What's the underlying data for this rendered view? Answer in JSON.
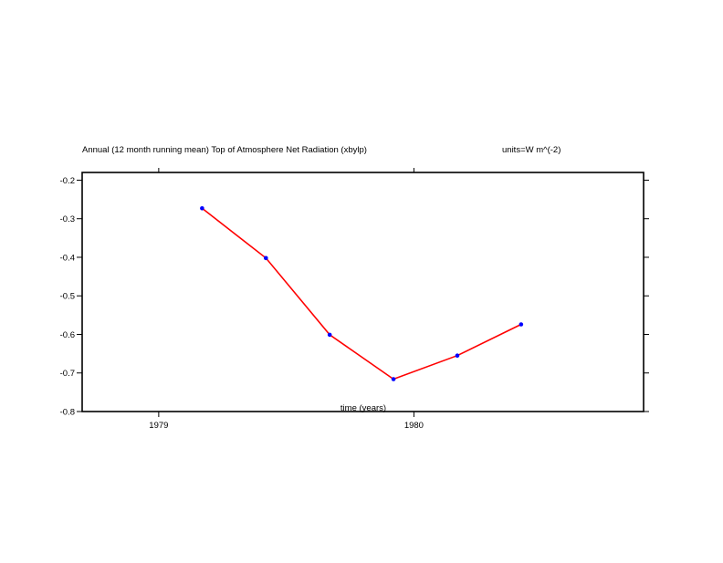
{
  "chart_data": {
    "type": "line",
    "title": "Annual (12 month running mean) Top of Atmosphere Net Radiation (xbylp)",
    "units": "units=W m^(-2)",
    "xlabel": "time (years)",
    "ylabel": "",
    "xlim": [
      1978.7,
      1980.9
    ],
    "ylim": [
      -0.8,
      -0.18
    ],
    "x_ticks": [
      1979,
      1980
    ],
    "x_tick_labels": [
      "1979",
      "1980"
    ],
    "y_ticks": [
      -0.2,
      -0.3,
      -0.4,
      -0.5,
      -0.6,
      -0.7,
      -0.8
    ],
    "y_tick_labels": [
      "-0.2",
      "-0.3",
      "-0.4",
      "-0.5",
      "-0.6",
      "-0.7",
      "-0.8"
    ],
    "grid": false,
    "series": [
      {
        "line_color": "#ff0000",
        "marker_color": "#0000ff",
        "x": [
          1979.17,
          1979.42,
          1979.67,
          1979.92,
          1980.17,
          1980.42
        ],
        "y": [
          -0.273,
          -0.402,
          -0.601,
          -0.716,
          -0.655,
          -0.574
        ]
      }
    ]
  }
}
